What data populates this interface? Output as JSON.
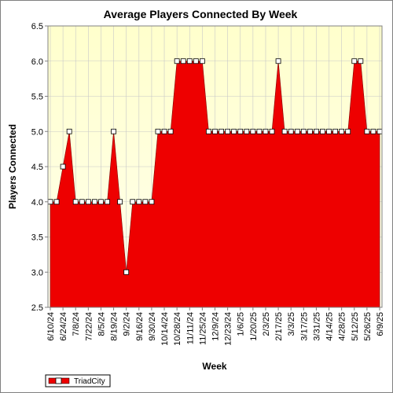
{
  "chart_data": {
    "type": "area",
    "title": "Average Players Connected By Week",
    "xlabel": "Week",
    "ylabel": "Players Connected",
    "ylim": [
      2.5,
      6.5
    ],
    "yticks": [
      "2.5",
      "3.0",
      "3.5",
      "4.0",
      "4.5",
      "5.0",
      "5.5",
      "6.0",
      "6.5"
    ],
    "xtick_labels": [
      "6/10/24",
      "6/24/24",
      "7/8/24",
      "7/22/24",
      "8/5/24",
      "8/19/24",
      "9/2/24",
      "9/16/24",
      "9/30/24",
      "10/14/24",
      "10/28/24",
      "11/11/24",
      "11/25/24",
      "12/9/24",
      "12/23/24",
      "1/6/25",
      "1/20/25",
      "2/3/25",
      "2/17/25",
      "3/3/25",
      "3/17/25",
      "3/31/25",
      "4/14/25",
      "4/28/25",
      "5/12/25",
      "5/26/25",
      "6/9/25"
    ],
    "grid": true,
    "legend_position": "bottom-left",
    "colors": {
      "fill": "#ee0000",
      "plot_background": "#ffffdd",
      "marker": "#ffffff",
      "grid": "#c8c8c8"
    },
    "series": [
      {
        "name": "TriadCity",
        "x": [
          "6/10/24",
          "6/17/24",
          "6/24/24",
          "7/1/24",
          "7/8/24",
          "7/15/24",
          "7/22/24",
          "7/29/24",
          "8/5/24",
          "8/12/24",
          "8/19/24",
          "8/26/24",
          "9/2/24",
          "9/9/24",
          "9/16/24",
          "9/23/24",
          "9/30/24",
          "10/7/24",
          "10/14/24",
          "10/21/24",
          "10/28/24",
          "11/4/24",
          "11/11/24",
          "11/18/24",
          "11/25/24",
          "12/2/24",
          "12/9/24",
          "12/16/24",
          "12/23/24",
          "12/30/24",
          "1/6/25",
          "1/13/25",
          "1/20/25",
          "1/27/25",
          "2/3/25",
          "2/10/25",
          "2/17/25",
          "2/24/25",
          "3/3/25",
          "3/10/25",
          "3/17/25",
          "3/24/25",
          "3/31/25",
          "4/7/25",
          "4/14/25",
          "4/21/25",
          "4/28/25",
          "5/5/25",
          "5/12/25",
          "5/19/25",
          "5/26/25",
          "6/2/25",
          "6/9/25"
        ],
        "values": [
          4,
          4,
          4.5,
          5,
          4,
          4,
          4,
          4,
          4,
          4,
          5,
          4,
          3,
          4,
          4,
          4,
          4,
          5,
          5,
          5,
          6,
          6,
          6,
          6,
          6,
          5,
          5,
          5,
          5,
          5,
          5,
          5,
          5,
          5,
          5,
          5,
          6,
          5,
          5,
          5,
          5,
          5,
          5,
          5,
          5,
          5,
          5,
          5,
          6,
          6,
          5,
          5,
          5
        ]
      }
    ]
  }
}
